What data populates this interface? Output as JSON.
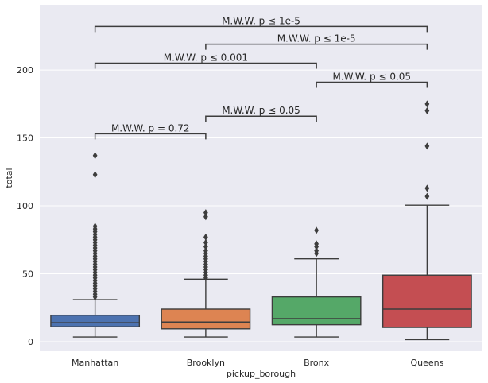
{
  "chart_data": {
    "type": "boxplot",
    "xlabel": "pickup_borough",
    "ylabel": "total",
    "ylim": [
      -7,
      248
    ],
    "yticks": [
      0,
      50,
      100,
      150,
      200
    ],
    "grid": true,
    "categories": [
      "Manhattan",
      "Brooklyn",
      "Bronx",
      "Queens"
    ],
    "colors": [
      "#4c72b0",
      "#dd8452",
      "#55a868",
      "#c44e52"
    ],
    "boxes": [
      {
        "category": "Manhattan",
        "whisker_low": 3.5,
        "q1": 11,
        "median": 14,
        "q3": 19.5,
        "whisker_high": 31,
        "outliers": [
          33,
          35,
          37,
          39,
          41,
          43,
          45,
          47,
          49,
          51,
          53,
          55,
          57,
          59,
          61,
          63,
          65,
          67,
          69,
          71,
          73,
          75,
          77,
          79,
          81,
          83,
          85,
          123,
          137
        ]
      },
      {
        "category": "Brooklyn",
        "whisker_low": 3.5,
        "q1": 9.5,
        "median": 14.5,
        "q3": 24,
        "whisker_high": 46,
        "outliers": [
          47,
          49,
          51,
          53,
          55,
          57,
          59,
          61,
          63,
          65,
          67,
          70,
          73,
          77,
          92,
          95
        ]
      },
      {
        "category": "Bronx",
        "whisker_low": 3.5,
        "q1": 12.5,
        "median": 17,
        "q3": 33,
        "whisker_high": 61,
        "outliers": [
          65,
          67,
          70,
          72,
          82
        ]
      },
      {
        "category": "Queens",
        "whisker_low": 1.5,
        "q1": 10.5,
        "median": 24,
        "q3": 49,
        "whisker_high": 100.5,
        "outliers": [
          107,
          113,
          144,
          170,
          175
        ]
      }
    ],
    "annotations": [
      {
        "from": 0,
        "to": 1,
        "y": 153,
        "text": "M.W.W. p = 0.72"
      },
      {
        "from": 1,
        "to": 2,
        "y": 166,
        "text": "M.W.W. p ≤ 0.05"
      },
      {
        "from": 2,
        "to": 3,
        "y": 191,
        "text": "M.W.W. p ≤ 0.05"
      },
      {
        "from": 0,
        "to": 2,
        "y": 205,
        "text": "M.W.W. p ≤ 0.001"
      },
      {
        "from": 1,
        "to": 3,
        "y": 219,
        "text": "M.W.W. p ≤ 1e-5"
      },
      {
        "from": 0,
        "to": 3,
        "y": 232,
        "text": "M.W.W. p ≤ 1e-5"
      }
    ]
  }
}
